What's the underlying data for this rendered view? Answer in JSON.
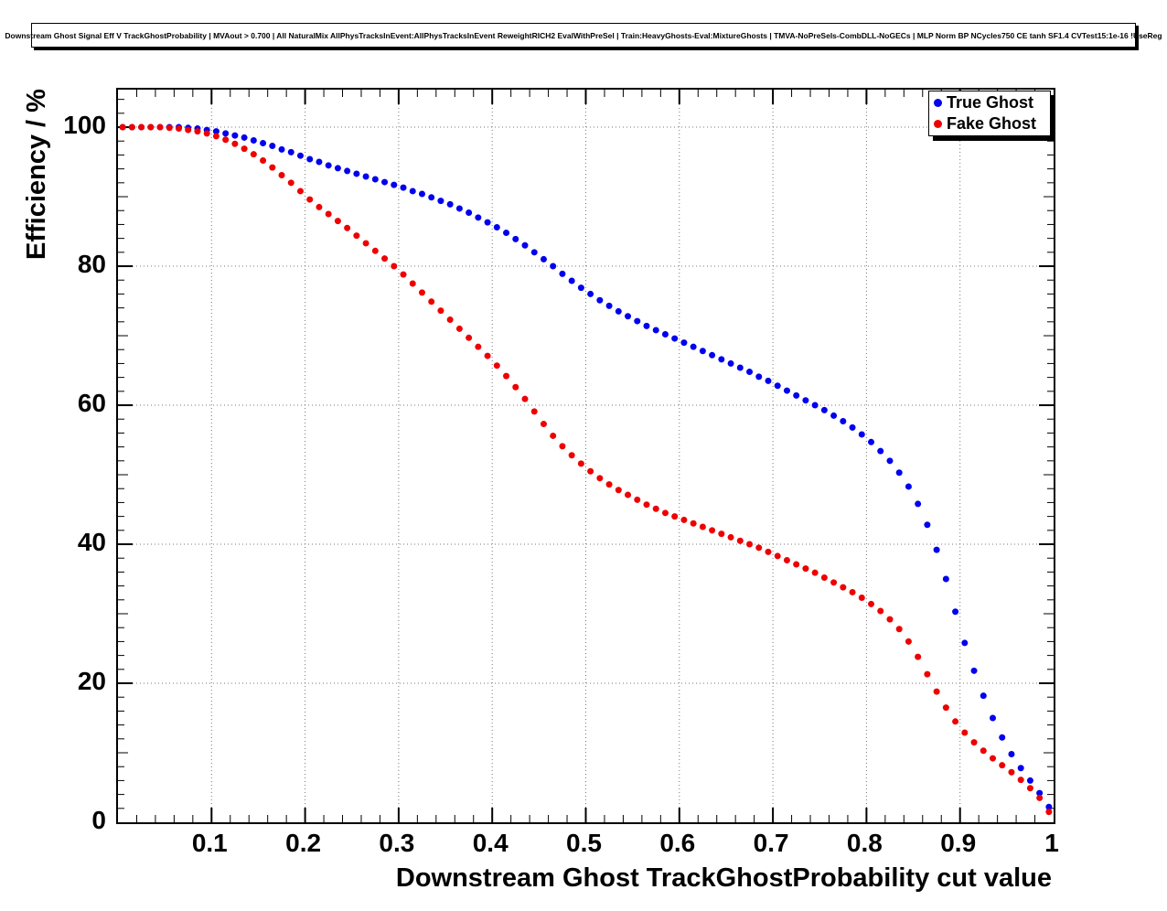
{
  "title": {
    "text": "Downstream Ghost Signal Eff V TrackGhostProbability | MVAout > 0.700 | All NaturalMix AllPhysTracksInEvent:AllPhysTracksInEvent ReweightRICH2 EvalWithPreSel | Train:HeavyGhosts-Eval:MixtureGhosts | TMVA-NoPreSels-CombDLL-NoGECs | MLP Norm BP NCycles750 CE tanh SF1.4 CVTest15:1e-16 !UseReg"
  },
  "axes": {
    "y_label": "Efficiency / %",
    "x_label": "Downstream Ghost TrackGhostProbability cut value",
    "y_ticks": [
      "0",
      "20",
      "40",
      "60",
      "80",
      "100"
    ],
    "x_ticks": [
      "0.1",
      "0.2",
      "0.3",
      "0.4",
      "0.5",
      "0.6",
      "0.7",
      "0.8",
      "0.9",
      "1"
    ]
  },
  "legend": {
    "entries": [
      {
        "label": "True Ghost",
        "color": "#0000ee"
      },
      {
        "label": "Fake Ghost",
        "color": "#ee0000"
      }
    ]
  },
  "chart_data": {
    "type": "scatter",
    "title": "Downstream Ghost Signal Eff V TrackGhostProbability | MVAout > 0.700 | All NaturalMix AllPhysTracksInEvent:AllPhysTracksInEvent ReweightRICH2 EvalWithPreSel | Train:HeavyGhosts-Eval:MixtureGhosts | TMVA-NoPreSels-CombDLL-NoGECs | MLP Norm BP NCycles750 CE tanh SF1.4 CVTest15:1e-16 !UseReg",
    "xlabel": "Downstream Ghost TrackGhostProbability cut value",
    "ylabel": "Efficiency / %",
    "xlim": [
      0,
      1
    ],
    "ylim": [
      0,
      105.4
    ],
    "grid": true,
    "grid_style": "dotted",
    "legend_position": "top-right",
    "marker": "filled-circle",
    "x_tick_values": [
      0.1,
      0.2,
      0.3,
      0.4,
      0.5,
      0.6,
      0.7,
      0.8,
      0.9,
      1
    ],
    "y_tick_values": [
      0,
      20,
      40,
      60,
      80,
      100
    ],
    "x": [
      0.005,
      0.015,
      0.025,
      0.035,
      0.045,
      0.055,
      0.065,
      0.075,
      0.085,
      0.095,
      0.105,
      0.115,
      0.125,
      0.135,
      0.145,
      0.155,
      0.165,
      0.175,
      0.185,
      0.195,
      0.205,
      0.215,
      0.225,
      0.235,
      0.245,
      0.255,
      0.265,
      0.275,
      0.285,
      0.295,
      0.305,
      0.315,
      0.325,
      0.335,
      0.345,
      0.355,
      0.365,
      0.375,
      0.385,
      0.395,
      0.405,
      0.415,
      0.425,
      0.435,
      0.445,
      0.455,
      0.465,
      0.475,
      0.485,
      0.495,
      0.505,
      0.515,
      0.525,
      0.535,
      0.545,
      0.555,
      0.565,
      0.575,
      0.585,
      0.595,
      0.605,
      0.615,
      0.625,
      0.635,
      0.645,
      0.655,
      0.665,
      0.675,
      0.685,
      0.695,
      0.705,
      0.715,
      0.725,
      0.735,
      0.745,
      0.755,
      0.765,
      0.775,
      0.785,
      0.795,
      0.805,
      0.815,
      0.825,
      0.835,
      0.845,
      0.855,
      0.865,
      0.875,
      0.885,
      0.895,
      0.905,
      0.915,
      0.925,
      0.935,
      0.945,
      0.955,
      0.965,
      0.975,
      0.985,
      0.995
    ],
    "series": [
      {
        "name": "True Ghost",
        "color": "#0000ee",
        "values": [
          100,
          100,
          100,
          100,
          100,
          100,
          100,
          99.9,
          99.8,
          99.6,
          99.4,
          99.1,
          98.8,
          98.5,
          98.1,
          97.7,
          97.3,
          96.8,
          96.4,
          95.9,
          95.4,
          95.0,
          94.5,
          94.1,
          93.7,
          93.3,
          92.9,
          92.5,
          92.1,
          91.7,
          91.3,
          90.8,
          90.4,
          89.9,
          89.4,
          88.9,
          88.3,
          87.7,
          87.0,
          86.3,
          85.6,
          84.8,
          83.9,
          83.0,
          82.0,
          81.0,
          80.0,
          78.9,
          77.9,
          76.9,
          76.0,
          75.1,
          74.3,
          73.5,
          72.8,
          72.1,
          71.4,
          70.8,
          70.2,
          69.6,
          69.0,
          68.4,
          67.8,
          67.2,
          66.6,
          66.0,
          65.4,
          64.8,
          64.1,
          63.5,
          62.8,
          62.1,
          61.4,
          60.7,
          60.0,
          59.3,
          58.5,
          57.7,
          56.8,
          55.8,
          54.7,
          53.4,
          52.0,
          50.3,
          48.3,
          45.8,
          42.8,
          39.2,
          35.0,
          30.3,
          25.8,
          21.8,
          18.2,
          15.0,
          12.2,
          9.8,
          7.8,
          6.0,
          4.2,
          2.2
        ]
      },
      {
        "name": "Fake Ghost",
        "color": "#ee0000",
        "values": [
          100,
          100,
          100,
          100,
          100,
          99.9,
          99.8,
          99.6,
          99.4,
          99.1,
          98.7,
          98.2,
          97.6,
          96.9,
          96.1,
          95.2,
          94.2,
          93.1,
          92.0,
          90.8,
          89.6,
          88.5,
          87.5,
          86.5,
          85.5,
          84.4,
          83.3,
          82.2,
          81.1,
          80.0,
          78.8,
          77.5,
          76.2,
          74.9,
          73.6,
          72.3,
          71.0,
          69.7,
          68.4,
          67.1,
          65.7,
          64.2,
          62.6,
          60.9,
          59.1,
          57.3,
          55.6,
          54.1,
          52.8,
          51.6,
          50.5,
          49.5,
          48.6,
          47.8,
          47.1,
          46.4,
          45.7,
          45.1,
          44.5,
          44.0,
          43.5,
          43.0,
          42.5,
          42.0,
          41.5,
          41.0,
          40.5,
          40.0,
          39.5,
          38.9,
          38.3,
          37.7,
          37.1,
          36.5,
          35.9,
          35.2,
          34.5,
          33.8,
          33.1,
          32.3,
          31.4,
          30.4,
          29.2,
          27.8,
          26.0,
          23.8,
          21.3,
          18.8,
          16.5,
          14.5,
          12.9,
          11.5,
          10.3,
          9.2,
          8.2,
          7.2,
          6.1,
          4.9,
          3.5,
          1.5
        ]
      }
    ]
  }
}
